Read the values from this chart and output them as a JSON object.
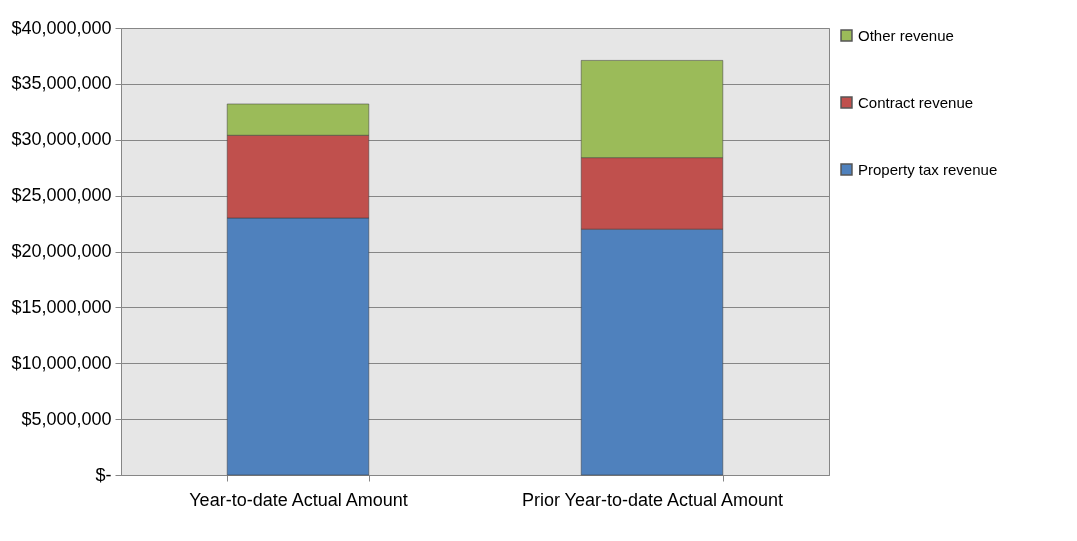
{
  "chart_data": {
    "type": "bar",
    "stacked": true,
    "categories": [
      "Year-to-date Actual Amount",
      "Prior Year-to-date Actual Amount"
    ],
    "series": [
      {
        "name": "Property tax revenue",
        "color": "#4f81bd",
        "values": [
          23000000,
          22000000
        ]
      },
      {
        "name": "Contract revenue",
        "color": "#c0504d",
        "values": [
          7400000,
          6400000
        ]
      },
      {
        "name": "Other revenue",
        "color": "#9bbb59",
        "values": [
          2800000,
          8700000
        ]
      }
    ],
    "ylim": [
      0,
      40000000
    ],
    "yticks": [
      {
        "value": 0,
        "label": "$-"
      },
      {
        "value": 5000000,
        "label": "$5,000,000"
      },
      {
        "value": 10000000,
        "label": "$10,000,000"
      },
      {
        "value": 15000000,
        "label": "$15,000,000"
      },
      {
        "value": 20000000,
        "label": "$20,000,000"
      },
      {
        "value": 25000000,
        "label": "$25,000,000"
      },
      {
        "value": 30000000,
        "label": "$30,000,000"
      },
      {
        "value": 35000000,
        "label": "$35,000,000"
      },
      {
        "value": 40000000,
        "label": "$40,000,000"
      }
    ],
    "grid": "y",
    "legend": "right"
  }
}
